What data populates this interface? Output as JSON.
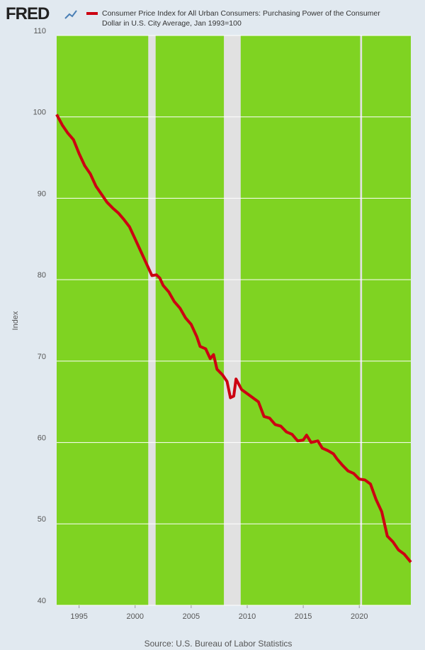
{
  "chart_data": {
    "type": "line",
    "brand": "FRED",
    "legend_text": "Consumer Price Index for All Urban Consumers: Purchasing Power of the Consumer Dollar in U.S. City Average, Jan 1993=100",
    "y_label": "Index",
    "source": "Source: U.S. Bureau of Labor Statistics",
    "x": [
      1993.0,
      1993.5,
      1994.0,
      1994.5,
      1995.0,
      1995.5,
      1996.0,
      1996.5,
      1997.0,
      1997.5,
      1998.0,
      1998.5,
      1999.0,
      1999.5,
      2000.0,
      2000.5,
      2001.0,
      2001.5,
      2001.9,
      2002.2,
      2002.5,
      2003.0,
      2003.5,
      2004.0,
      2004.5,
      2005.0,
      2005.5,
      2005.8,
      2006.3,
      2006.7,
      2007.0,
      2007.3,
      2007.8,
      2008.2,
      2008.5,
      2008.8,
      2009.0,
      2009.5,
      2010.0,
      2010.5,
      2011.0,
      2011.5,
      2012.0,
      2012.5,
      2013.0,
      2013.5,
      2014.0,
      2014.5,
      2015.0,
      2015.3,
      2015.7,
      2016.3,
      2016.7,
      2017.2,
      2017.7,
      2018.0,
      2018.5,
      2019.0,
      2019.5,
      2020.0,
      2020.5,
      2021.0,
      2021.5,
      2022.0,
      2022.5,
      2023.0,
      2023.5,
      2024.0,
      2024.6
    ],
    "series": [
      {
        "name": "Consumer Price Index for All Urban Consumers: Purchasing Power of the Consumer Dollar in U.S. City Average",
        "color": "#cc0011",
        "values": [
          100.3,
          99,
          98,
          97.2,
          95.5,
          94,
          93,
          91.5,
          90.5,
          89.5,
          88.8,
          88.2,
          87.4,
          86.5,
          85,
          83.5,
          82,
          80.5,
          80.6,
          80.2,
          79.3,
          78.5,
          77.3,
          76.5,
          75.3,
          74.5,
          73,
          71.8,
          71.5,
          70.3,
          70.8,
          69,
          68.3,
          67.5,
          65.5,
          65.7,
          67.8,
          66.5,
          66,
          65.5,
          65,
          63.2,
          63,
          62.2,
          62,
          61.3,
          61,
          60.2,
          60.3,
          60.9,
          60,
          60.2,
          59.3,
          59,
          58.6,
          58,
          57.2,
          56.5,
          56.2,
          55.5,
          55.4,
          54.9,
          53,
          51.5,
          48.5,
          47.8,
          46.8,
          46.3,
          45.3
        ]
      }
    ],
    "recessions": [
      [
        2001.17,
        2001.83
      ],
      [
        2007.92,
        2009.42
      ],
      [
        2020.08,
        2020.25
      ]
    ],
    "recession_color": "#e1e1e1",
    "plot_color": "#7fd322",
    "xlim": [
      1993.0,
      2024.6
    ],
    "ylim": [
      40,
      110
    ],
    "xticks": [
      1995,
      2000,
      2005,
      2010,
      2015,
      2020
    ],
    "yticks": [
      40,
      50,
      60,
      70,
      80,
      90,
      100,
      110
    ],
    "grid": true
  }
}
